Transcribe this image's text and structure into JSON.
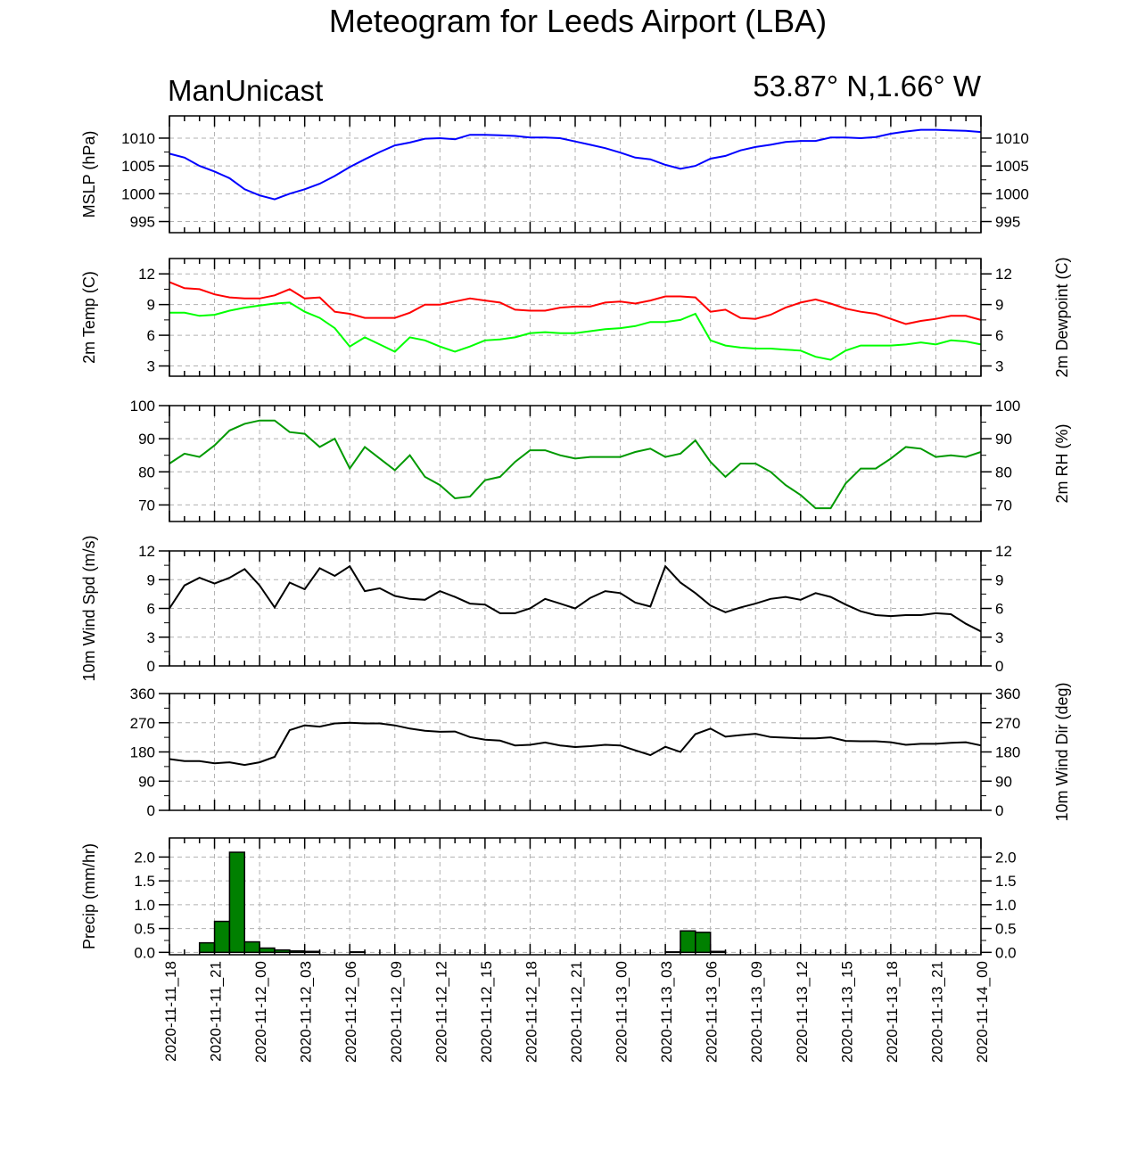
{
  "title": "Meteogram for Leeds Airport (LBA)",
  "subtitle_left": "ManUnicast",
  "subtitle_right": "53.87° N,1.66° W",
  "colors": {
    "mslp": "#0000ff",
    "temp": "#ff0000",
    "dewpoint": "#00ff00",
    "rh": "#009900",
    "wind": "#000000",
    "precip_fill": "#008000",
    "grid": "#b0b0b0"
  },
  "chart_data": {
    "type": "line",
    "x_ticks": [
      "2020-11-11_18",
      "2020-11-11_21",
      "2020-11-12_00",
      "2020-11-12_03",
      "2020-11-12_06",
      "2020-11-12_09",
      "2020-11-12_12",
      "2020-11-12_15",
      "2020-11-12_18",
      "2020-11-12_21",
      "2020-11-13_00",
      "2020-11-13_03",
      "2020-11-13_06",
      "2020-11-13_09",
      "2020-11-13_12",
      "2020-11-13_15",
      "2020-11-13_18",
      "2020-11-13_21",
      "2020-11-14_00"
    ],
    "x_hours_span": [
      0,
      54
    ],
    "grid": true,
    "panels": [
      {
        "id": "mslp",
        "ylabel_left": "MSLP (hPa)",
        "ylabel_right": "",
        "ylim": [
          993,
          1014
        ],
        "yticks": [
          995,
          1000,
          1005,
          1010
        ],
        "series": [
          {
            "key": "mslp",
            "color": "#0000ff",
            "x": [
              0,
              1,
              2,
              3,
              4,
              5,
              6,
              7,
              8,
              9,
              10,
              11,
              12,
              13,
              14,
              15,
              16,
              17,
              18,
              19,
              20,
              21,
              22,
              23,
              24,
              25,
              26,
              27,
              28,
              29,
              30,
              31,
              32,
              33,
              34,
              35,
              36,
              37,
              38,
              39,
              40,
              41,
              42,
              43,
              44,
              45,
              46,
              47,
              48,
              49,
              50,
              51,
              52,
              53,
              54
            ],
            "y": [
              1007.2,
              1006.5,
              1005,
              1004,
              1002.8,
              1000.8,
              999.7,
              999,
              1000,
              1000.8,
              1001.8,
              1003.2,
              1004.8,
              1006.2,
              1007.5,
              1008.7,
              1009.2,
              1009.9,
              1010,
              1009.8,
              1010.6,
              1010.6,
              1010.5,
              1010.4,
              1010.1,
              1010.1,
              1010,
              1009.4,
              1008.8,
              1008.2,
              1007.4,
              1006.5,
              1006.2,
              1005.2,
              1004.5,
              1005,
              1006.3,
              1006.8,
              1007.8,
              1008.4,
              1008.8,
              1009.3,
              1009.5,
              1009.5,
              1010.1,
              1010.1,
              1010,
              1010.2,
              1010.8,
              1011.2,
              1011.5,
              1011.5,
              1011.4,
              1011.3,
              1011.1
            ]
          }
        ]
      },
      {
        "id": "temp",
        "ylabel_left": "2m Temp (C)",
        "ylabel_right": "2m Dewpoint (C)",
        "ylim": [
          2,
          13.5
        ],
        "yticks": [
          3,
          6,
          9,
          12
        ],
        "series": [
          {
            "key": "temp",
            "color": "#ff0000",
            "x": [
              0,
              1,
              2,
              3,
              4,
              5,
              6,
              7,
              8,
              9,
              10,
              11,
              12,
              13,
              14,
              15,
              16,
              17,
              18,
              19,
              20,
              21,
              22,
              23,
              24,
              25,
              26,
              27,
              28,
              29,
              30,
              31,
              32,
              33,
              34,
              35,
              36,
              37,
              38,
              39,
              40,
              41,
              42,
              43,
              44,
              45,
              46,
              47,
              48,
              49,
              50,
              51,
              52,
              53,
              54
            ],
            "y": [
              11.2,
              10.6,
              10.5,
              10,
              9.7,
              9.6,
              9.6,
              9.9,
              10.5,
              9.6,
              9.7,
              8.3,
              8.1,
              7.7,
              7.7,
              7.7,
              8.2,
              9,
              9,
              9.3,
              9.6,
              9.4,
              9.2,
              8.5,
              8.4,
              8.4,
              8.7,
              8.8,
              8.8,
              9.2,
              9.3,
              9.1,
              9.4,
              9.8,
              9.8,
              9.7,
              8.3,
              8.5,
              7.7,
              7.6,
              8,
              8.7,
              9.2,
              9.5,
              9.1,
              8.6,
              8.3,
              8.1,
              7.6,
              7.1,
              7.4,
              7.6,
              7.9,
              7.9,
              7.5
            ]
          },
          {
            "key": "dewpoint",
            "color": "#00ff00",
            "x": [
              0,
              1,
              2,
              3,
              4,
              5,
              6,
              7,
              8,
              9,
              10,
              11,
              12,
              13,
              14,
              15,
              16,
              17,
              18,
              19,
              20,
              21,
              22,
              23,
              24,
              25,
              26,
              27,
              28,
              29,
              30,
              31,
              32,
              33,
              34,
              35,
              36,
              37,
              38,
              39,
              40,
              41,
              42,
              43,
              44,
              45,
              46,
              47,
              48,
              49,
              50,
              51,
              52,
              53,
              54
            ],
            "y": [
              8.2,
              8.2,
              7.9,
              8,
              8.4,
              8.7,
              8.9,
              9.1,
              9.2,
              8.3,
              7.7,
              6.7,
              4.9,
              5.8,
              5.1,
              4.4,
              5.8,
              5.5,
              4.9,
              4.4,
              4.9,
              5.5,
              5.6,
              5.8,
              6.2,
              6.3,
              6.2,
              6.2,
              6.4,
              6.6,
              6.7,
              6.9,
              7.3,
              7.3,
              7.5,
              8.1,
              5.5,
              5,
              4.8,
              4.7,
              4.7,
              4.6,
              4.5,
              3.9,
              3.6,
              4.5,
              5,
              5,
              5,
              5.1,
              5.3,
              5.1,
              5.5,
              5.4,
              5.1
            ]
          }
        ]
      },
      {
        "id": "rh",
        "ylabel_left": "",
        "ylabel_right": "2m RH (%)",
        "ylim": [
          65,
          100
        ],
        "yticks": [
          70,
          80,
          90,
          100
        ],
        "series": [
          {
            "key": "rh",
            "color": "#009900",
            "x": [
              0,
              1,
              2,
              3,
              4,
              5,
              6,
              7,
              8,
              9,
              10,
              11,
              12,
              13,
              14,
              15,
              16,
              17,
              18,
              19,
              20,
              21,
              22,
              23,
              24,
              25,
              26,
              27,
              28,
              29,
              30,
              31,
              32,
              33,
              34,
              35,
              36,
              37,
              38,
              39,
              40,
              41,
              42,
              43,
              44,
              45,
              46,
              47,
              48,
              49,
              50,
              51,
              52,
              53,
              54
            ],
            "y": [
              82.5,
              85.5,
              84.5,
              88,
              92.5,
              94.5,
              95.5,
              95.5,
              92,
              91.5,
              87.5,
              90,
              81,
              87.5,
              84,
              80.5,
              85,
              78.5,
              76,
              72,
              72.5,
              77.5,
              78.5,
              83,
              86.5,
              86.5,
              85,
              84,
              84.5,
              84.5,
              84.5,
              86,
              87,
              84.5,
              85.5,
              89.5,
              83,
              78.5,
              82.5,
              82.5,
              80,
              76,
              73,
              69,
              69,
              76.5,
              81,
              81,
              84,
              87.5,
              87,
              84.5,
              85,
              84.5,
              86
            ]
          }
        ]
      },
      {
        "id": "wind",
        "ylabel_left": "10m Wind Spd (m/s)",
        "ylabel_right": "",
        "ylim": [
          0,
          12
        ],
        "yticks": [
          0,
          3,
          6,
          9,
          12
        ],
        "series": [
          {
            "key": "wind",
            "color": "#000000",
            "x": [
              0,
              1,
              2,
              3,
              4,
              5,
              6,
              7,
              8,
              9,
              10,
              11,
              12,
              13,
              14,
              15,
              16,
              17,
              18,
              19,
              20,
              21,
              22,
              23,
              24,
              25,
              26,
              27,
              28,
              29,
              30,
              31,
              32,
              33,
              34,
              35,
              36,
              37,
              38,
              39,
              40,
              41,
              42,
              43,
              44,
              45,
              46,
              47,
              48,
              49,
              50,
              51,
              52,
              53,
              54
            ],
            "y": [
              6,
              8.4,
              9.2,
              8.6,
              9.2,
              10.1,
              8.4,
              6.1,
              8.7,
              8,
              10.2,
              9.4,
              10.4,
              7.8,
              8.1,
              7.3,
              7,
              6.9,
              7.8,
              7.2,
              6.5,
              6.4,
              5.5,
              5.5,
              6,
              7,
              6.5,
              6,
              7.1,
              7.8,
              7.6,
              6.6,
              6.2,
              10.4,
              8.7,
              7.6,
              6.3,
              5.6,
              6.1,
              6.5,
              7,
              7.2,
              6.9,
              7.6,
              7.2,
              6.4,
              5.7,
              5.3,
              5.2,
              5.3,
              5.3,
              5.5,
              5.4,
              4.4,
              3.6
            ]
          }
        ]
      },
      {
        "id": "winddir",
        "ylabel_left": "",
        "ylabel_right": "10m Wind Dir (deg)",
        "ylim": [
          0,
          360
        ],
        "yticks": [
          0,
          90,
          180,
          270,
          360
        ],
        "series": [
          {
            "key": "winddir",
            "color": "#000000",
            "x": [
              0,
              1,
              2,
              3,
              4,
              5,
              6,
              7,
              8,
              9,
              10,
              11,
              12,
              13,
              14,
              15,
              16,
              17,
              18,
              19,
              20,
              21,
              22,
              23,
              24,
              25,
              26,
              27,
              28,
              29,
              30,
              31,
              32,
              33,
              34,
              35,
              36,
              37,
              38,
              39,
              40,
              41,
              42,
              43,
              44,
              45,
              46,
              47,
              48,
              49,
              50,
              51,
              52,
              53,
              54
            ],
            "y": [
              158,
              152,
              152,
              145,
              148,
              140,
              148,
              165,
              247,
              262,
              258,
              268,
              270,
              268,
              268,
              262,
              252,
              245,
              242,
              243,
              226,
              218,
              215,
              200,
              202,
              209,
              200,
              195,
              198,
              202,
              200,
              185,
              170,
              196,
              180,
              235,
              252,
              227,
              232,
              236,
              226,
              224,
              222,
              222,
              225,
              214,
              213,
              213,
              210,
              202,
              205,
              205,
              208,
              210,
              200
            ]
          }
        ]
      },
      {
        "id": "precip",
        "ylabel_left": "Precip (mm/hr)",
        "ylabel_right": "",
        "ylim": [
          -0.05,
          2.4
        ],
        "yticks": [
          0.0,
          0.5,
          1.0,
          1.5,
          2.0
        ],
        "ytick_labels": [
          "0.0",
          "0.5",
          "1.0",
          "1.5",
          "2.0"
        ],
        "bar_color": "#008000",
        "bars": {
          "x_start": [
            2,
            3,
            4,
            5,
            6,
            7,
            8,
            9,
            12,
            33,
            34,
            35,
            36
          ],
          "values": [
            0.2,
            0.65,
            2.1,
            0.22,
            0.09,
            0.05,
            0.03,
            0.02,
            0.01,
            0.01,
            0.45,
            0.42,
            0.02
          ]
        }
      }
    ]
  }
}
